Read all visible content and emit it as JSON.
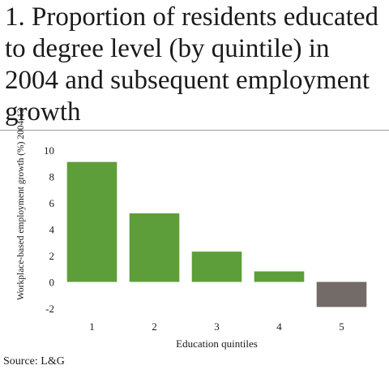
{
  "title": "1. Proportion of residents educated to degree level (by quintile) in 2004 and subsequent employment growth",
  "source": "Source: L&G",
  "chart_data": {
    "type": "bar",
    "categories": [
      "1",
      "2",
      "3",
      "4",
      "5"
    ],
    "values": [
      9.1,
      5.2,
      2.3,
      0.8,
      -1.9
    ],
    "xlabel": "Education quintiles",
    "ylabel": "Workplace-based employment growth (%) 2004-13",
    "ylim": [
      -2,
      10
    ],
    "yticks": [
      -2,
      0,
      2,
      4,
      6,
      8,
      10
    ],
    "colors": {
      "positive": "#5e9e3a",
      "negative": "#726b67"
    },
    "grid": false
  }
}
